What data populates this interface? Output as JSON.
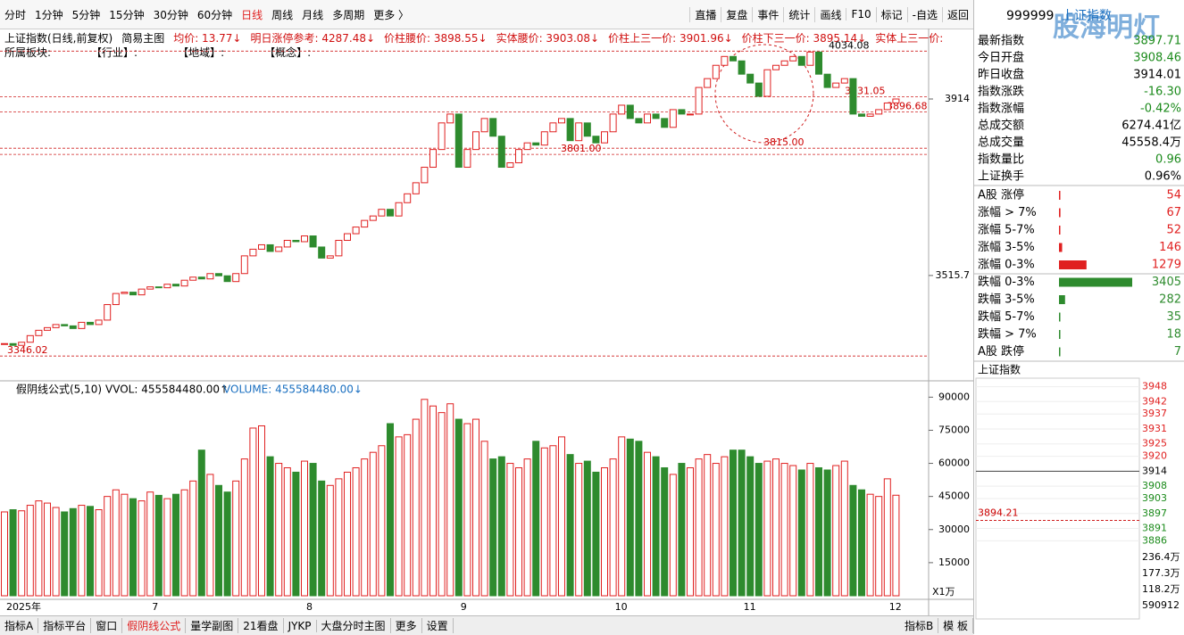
{
  "toolbar": {
    "periods": [
      "分时",
      "1分钟",
      "5分钟",
      "15分钟",
      "30分钟",
      "60分钟",
      "日线",
      "周线",
      "月线",
      "多周期",
      "更多 〉"
    ],
    "actions": [
      "直播",
      "复盘",
      "事件",
      "统计",
      "画线",
      "F10",
      "标记",
      "-自选",
      "返回"
    ]
  },
  "info_bar": {
    "title": "上证指数(日线,前复权)",
    "mode": "简易主图",
    "items": [
      "均价: 13.77↓",
      "明日涨停参考: 4287.48↓",
      "价柱腰价: 3898.55↓",
      "实体腰价: 3903.08↓",
      "价柱上三一价: 3901.96↓",
      "价柱下三一价: 3895.14↓",
      "实体上三一价:"
    ]
  },
  "sector_bar": [
    "所属板块:",
    "【行业】:",
    "【地域】:",
    "【概念】:"
  ],
  "chart_data": {
    "type": "candlestick",
    "categories": [
      "2025年",
      null,
      null,
      null,
      null,
      null,
      null,
      null,
      null,
      null,
      null,
      null,
      null,
      null,
      null,
      null,
      null,
      "7",
      null,
      null,
      null,
      null,
      null,
      null,
      null,
      null,
      null,
      null,
      null,
      null,
      null,
      null,
      null,
      null,
      null,
      "8",
      null,
      null,
      null,
      null,
      null,
      null,
      null,
      null,
      null,
      null,
      null,
      null,
      null,
      null,
      null,
      null,
      null,
      "9",
      null,
      null,
      null,
      null,
      null,
      null,
      null,
      null,
      null,
      null,
      null,
      null,
      null,
      null,
      null,
      null,
      null,
      "10",
      null,
      null,
      null,
      null,
      null,
      null,
      null,
      null,
      null,
      null,
      null,
      null,
      null,
      null,
      "11",
      null,
      null,
      null,
      null,
      null,
      null,
      null,
      null,
      null,
      null,
      null,
      null,
      null,
      null,
      null,
      null,
      "12",
      null
    ],
    "close": [
      3362,
      3358,
      3365,
      3380,
      3392,
      3398,
      3405,
      3402,
      3396,
      3410,
      3405,
      3415,
      3450,
      3475,
      3478,
      3472,
      3485,
      3490,
      3488,
      3496,
      3492,
      3505,
      3512,
      3508,
      3520,
      3515,
      3502,
      3520,
      3560,
      3575,
      3585,
      3570,
      3580,
      3595,
      3592,
      3605,
      3580,
      3555,
      3560,
      3595,
      3610,
      3625,
      3640,
      3650,
      3665,
      3650,
      3680,
      3700,
      3725,
      3760,
      3800,
      3860,
      3880,
      3760,
      3800,
      3840,
      3870,
      3830,
      3760,
      3770,
      3800,
      3815,
      3810,
      3840,
      3860,
      3870,
      3820,
      3860,
      3830,
      3815,
      3840,
      3880,
      3900,
      3870,
      3860,
      3880,
      3870,
      3850,
      3890,
      3880,
      3880,
      3940,
      3960,
      3990,
      4010,
      4000,
      3970,
      3950,
      3920,
      3980,
      3990,
      4000,
      4010,
      3990,
      4020,
      3970,
      3940,
      3950,
      3960,
      3880,
      3875,
      3880,
      3890,
      3905,
      3914
    ],
    "volume": [
      38000,
      39000,
      38500,
      41000,
      43000,
      42000,
      40000,
      38000,
      39500,
      41000,
      40500,
      39000,
      45000,
      48000,
      46000,
      44000,
      43000,
      47000,
      45500,
      44000,
      46000,
      48000,
      52000,
      66000,
      55000,
      50000,
      47000,
      52000,
      62000,
      76000,
      77000,
      63000,
      60000,
      58000,
      56000,
      61000,
      60000,
      52000,
      50000,
      53000,
      56000,
      58000,
      62000,
      65000,
      68000,
      78000,
      72000,
      73000,
      80000,
      89000,
      86000,
      83000,
      87000,
      80000,
      78000,
      80000,
      70000,
      62000,
      63000,
      60000,
      58000,
      62000,
      70000,
      67000,
      68000,
      72000,
      64000,
      60000,
      61000,
      56000,
      58000,
      62000,
      72000,
      71000,
      70000,
      65000,
      63000,
      58000,
      55000,
      60000,
      58000,
      62000,
      64000,
      60000,
      63000,
      66000,
      66000,
      63000,
      60000,
      61000,
      62000,
      60000,
      59000,
      57000,
      60000,
      58000,
      57000,
      59000,
      61000,
      50000,
      48000,
      46000,
      45000,
      53000,
      45558.4
    ],
    "ylim": [
      3282,
      4073
    ],
    "yticks": [
      3914,
      3515.7
    ],
    "annotations": [
      {
        "value": 4034.08,
        "label": "4034.08"
      },
      {
        "value": 3931.05,
        "label": "3931.05"
      },
      {
        "value": 3896.68,
        "label": "3896.68"
      },
      {
        "value": 3815,
        "label": "3815.00"
      },
      {
        "value": 3801,
        "label": "3801.00"
      },
      {
        "value": 3346.02,
        "label": "3346.02"
      }
    ],
    "volume_ylim": [
      0,
      97000
    ],
    "volume_yticks": [
      15000,
      30000,
      45000,
      60000,
      75000,
      90000
    ],
    "volume_unit": "X1万",
    "volume_title": "假阴线公式(5,10)",
    "vvol": "VVOL: 455584480.00↑",
    "volume_label": "VOLUME: 455584480.00↓",
    "up_color": "#e02020",
    "down_color": "#2e8b2e"
  },
  "bottom_tabs": [
    "指标A",
    "指标平台",
    "窗口",
    "假阴线公式",
    "量学副图",
    "21看盘",
    "JYKP",
    "大盘分时主图",
    "更多",
    "设置"
  ],
  "bottom_right": [
    "指标B",
    "模 板"
  ],
  "quote": {
    "code": "999999",
    "name": "上证指数",
    "watermark": "股海明灯",
    "rows": [
      {
        "label": "最新指数",
        "value": "3897.71",
        "color": "#1a8a1a"
      },
      {
        "label": "今日开盘",
        "value": "3908.46",
        "color": "#1a8a1a"
      },
      {
        "label": "昨日收盘",
        "value": "3914.01",
        "color": "#000"
      },
      {
        "label": "指数涨跌",
        "value": "-16.30",
        "color": "#1a8a1a"
      },
      {
        "label": "指数涨幅",
        "value": "-0.42%",
        "color": "#1a8a1a"
      },
      {
        "label": "总成交额",
        "value": "6274.41亿",
        "color": "#000"
      },
      {
        "label": "总成交量",
        "value": "45558.4万",
        "color": "#000"
      },
      {
        "label": "指数量比",
        "value": "0.96",
        "color": "#1a8a1a"
      },
      {
        "label": "上证换手",
        "value": "0.96%",
        "color": "#000"
      }
    ]
  },
  "breadth": {
    "max": 3405,
    "rows": [
      {
        "label": "A股 涨停",
        "value": 54,
        "color": "#e02020"
      },
      {
        "label": "涨幅 > 7%",
        "value": 67,
        "color": "#e02020"
      },
      {
        "label": "涨幅 5-7%",
        "value": 52,
        "color": "#e02020"
      },
      {
        "label": "涨幅 3-5%",
        "value": 146,
        "color": "#e02020"
      },
      {
        "label": "涨幅 0-3%",
        "value": 1279,
        "color": "#e02020"
      },
      {
        "label": "跌幅 0-3%",
        "value": 3405,
        "color": "#2e8b2e"
      },
      {
        "label": "跌幅 3-5%",
        "value": 282,
        "color": "#2e8b2e"
      },
      {
        "label": "跌幅 5-7%",
        "value": 35,
        "color": "#2e8b2e"
      },
      {
        "label": "跌幅 > 7%",
        "value": 18,
        "color": "#2e8b2e"
      },
      {
        "label": "A股 跌停",
        "value": 7,
        "color": "#2e8b2e"
      }
    ]
  },
  "intraday": {
    "title": "上证指数",
    "ylim": [
      3884,
      3950
    ],
    "yticks": [
      3948,
      3942,
      3937,
      3931,
      3925,
      3920,
      3914,
      3908,
      3903,
      3897,
      3891,
      3886
    ],
    "base": 3914,
    "ref": {
      "value": 3894.21,
      "label": "3894.21"
    },
    "volume_ticks": [
      "236.4万",
      "177.3万",
      "118.2万",
      "590912"
    ],
    "period": "日线"
  }
}
